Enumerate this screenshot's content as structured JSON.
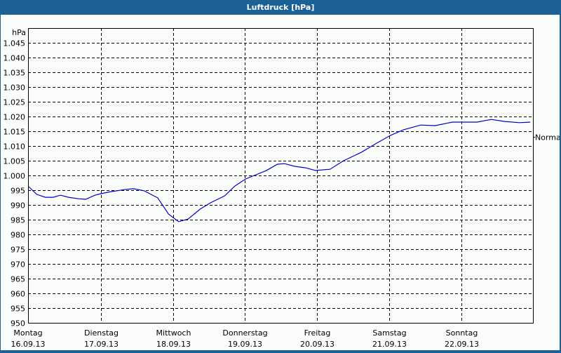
{
  "window": {
    "title": "Luftdruck [hPa]"
  },
  "colors": {
    "titlebar": "#1c6196",
    "line": "#0000cc",
    "background": "#fbfdfb",
    "grid": "#000000"
  },
  "chart_data": {
    "type": "line",
    "title": "Luftdruck [hPa]",
    "ylabel": "hPa",
    "xlabel": "",
    "ylim": [
      950,
      1050
    ],
    "yticks": [
      "950",
      "955",
      "960",
      "965",
      "970",
      "975",
      "980",
      "985",
      "990",
      "995",
      "1.000",
      "1.005",
      "1.010",
      "1.015",
      "1.020",
      "1.025",
      "1.030",
      "1.035",
      "1.040",
      "1.045"
    ],
    "xticks": [
      {
        "day": "Montag",
        "date": "16.09.13"
      },
      {
        "day": "Dienstag",
        "date": "17.09.13"
      },
      {
        "day": "Mittwoch",
        "date": "18.09.13"
      },
      {
        "day": "Donnerstag",
        "date": "19.09.13"
      },
      {
        "day": "Freitag",
        "date": "20.09.13"
      },
      {
        "day": "Samstag",
        "date": "21.09.13"
      },
      {
        "day": "Sonntag",
        "date": "22.09.13"
      }
    ],
    "grid": true,
    "reference_line": {
      "label": "Normal",
      "value": 1013
    },
    "series": [
      {
        "name": "Luftdruck",
        "x_days": [
          0,
          0.11,
          0.23,
          0.34,
          0.44,
          0.55,
          0.69,
          0.79,
          0.92,
          1.0,
          1.14,
          1.33,
          1.45,
          1.6,
          1.79,
          1.94,
          2.08,
          2.21,
          2.38,
          2.52,
          2.72,
          2.86,
          3.01,
          3.13,
          3.3,
          3.45,
          3.55,
          3.69,
          3.84,
          3.98,
          4.18,
          4.37,
          4.62,
          4.81,
          5.02,
          5.2,
          5.44,
          5.64,
          5.88,
          6.22,
          6.42,
          6.61,
          6.81,
          6.96
        ],
        "values": [
          996.2,
          993.6,
          992.6,
          992.6,
          993.3,
          992.6,
          992.1,
          991.9,
          993.3,
          993.8,
          994.5,
          995.2,
          995.5,
          994.8,
          992.4,
          986.9,
          984.3,
          985.2,
          988.6,
          990.7,
          993.1,
          996.4,
          998.8,
          1000.0,
          1001.7,
          1003.8,
          1004.0,
          1003.1,
          1002.6,
          1001.7,
          1002.1,
          1005.0,
          1007.9,
          1010.7,
          1013.6,
          1015.5,
          1017.1,
          1016.9,
          1018.1,
          1018.1,
          1019.0,
          1018.3,
          1017.9,
          1018.1
        ]
      }
    ]
  }
}
